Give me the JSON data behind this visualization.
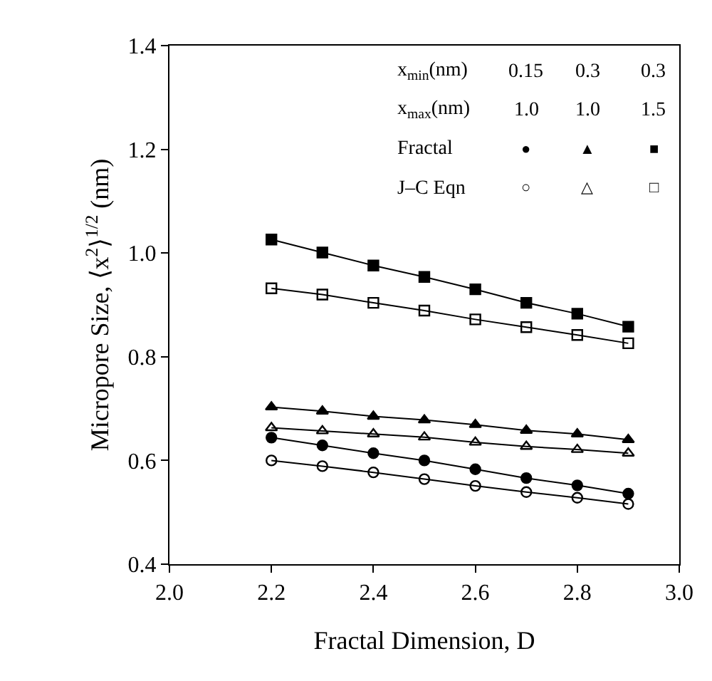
{
  "chart_data": {
    "type": "line",
    "xlabel": "Fractal Dimension, D",
    "ylabel": "Micropore Size, ⟨x$^{2}$⟩$^{1/2}$ (nm)",
    "x": [
      2.2,
      2.3,
      2.4,
      2.5,
      2.6,
      2.7,
      2.8,
      2.9
    ],
    "series": [
      {
        "color": "#000000",
        "marker": "circle",
        "values": [
          0.644,
          0.629,
          0.614,
          0.6,
          0.583,
          0.566,
          0.552,
          0.536
        ]
      },
      {
        "color": "#000000",
        "marker": "triangle",
        "values": [
          0.703,
          0.695,
          0.685,
          0.678,
          0.669,
          0.658,
          0.651,
          0.64
        ]
      },
      {
        "color": "#000000",
        "marker": "square",
        "values": [
          1.026,
          1.001,
          0.976,
          0.954,
          0.93,
          0.904,
          0.883,
          0.858
        ]
      },
      {
        "color": "#000000",
        "marker": "circle-open",
        "values": [
          0.6,
          0.589,
          0.577,
          0.564,
          0.551,
          0.539,
          0.528,
          0.516
        ]
      },
      {
        "color": "#000000",
        "marker": "triangle-open",
        "values": [
          0.663,
          0.657,
          0.651,
          0.645,
          0.635,
          0.627,
          0.621,
          0.614
        ]
      },
      {
        "color": "#000000",
        "marker": "square-open",
        "values": [
          0.932,
          0.92,
          0.904,
          0.889,
          0.872,
          0.857,
          0.842,
          0.826
        ]
      }
    ],
    "xlim": [
      2.0,
      3.0
    ],
    "xticks": [
      {
        "value": 2.0,
        "label": "2.0"
      },
      2.2,
      2.4,
      2.6,
      2.8,
      {
        "value": 3.0,
        "label": "3.0"
      }
    ],
    "ylim": [
      0.4,
      1.4
    ],
    "yticks": [
      0.4,
      0.6,
      0.8,
      {
        "value": 1.0,
        "label": "1.0"
      },
      1.2,
      1.4
    ],
    "line_style": "solid",
    "annotations": [
      "x$_{min}$(nm)",
      "0.15",
      "0.3",
      "0.3",
      "x$_{max}$(nm)",
      "1.0",
      "1.0",
      "1.5",
      "Fractal",
      "●",
      "▲",
      "■",
      "J–C Eqn",
      "○",
      "△",
      "□"
    ]
  }
}
